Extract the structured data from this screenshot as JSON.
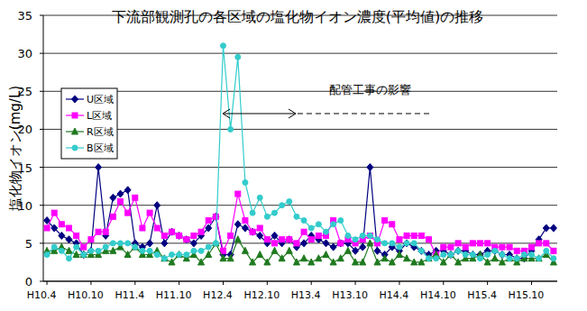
{
  "chart_data": {
    "type": "line",
    "title": "下流部観測孔の各区域の塩化物イオン濃度(平均値)の推移",
    "y_label": "塩化物イオン(mg/L)",
    "annotation": "配管工事の影響",
    "categories": [
      "H10.4",
      null,
      null,
      null,
      null,
      null,
      "H10.10",
      null,
      null,
      null,
      null,
      null,
      "H11.4",
      null,
      null,
      null,
      null,
      null,
      "H11.10",
      null,
      null,
      null,
      null,
      null,
      "H12.4",
      null,
      null,
      null,
      null,
      null,
      "H12.10",
      null,
      null,
      null,
      null,
      null,
      "H13.4",
      null,
      null,
      null,
      null,
      null,
      "H13.10",
      null,
      null,
      null,
      null,
      null,
      "H14.4",
      null,
      null,
      null,
      null,
      null,
      "H14.10",
      null,
      null,
      null,
      null,
      null,
      "H15.4",
      null,
      null,
      null,
      null,
      null,
      "H15.10",
      null,
      null,
      null
    ],
    "series": [
      {
        "name": "U区域",
        "color": "#000080",
        "marker": "diamond",
        "values": [
          8,
          7,
          6,
          5.5,
          5,
          3.5,
          4,
          15,
          6,
          11,
          11.5,
          12,
          5,
          4.5,
          5,
          10,
          5,
          6.5,
          6,
          5.5,
          5,
          6,
          7,
          8.5,
          3.5,
          3.5,
          7.5,
          7,
          6.5,
          6,
          5,
          6,
          5,
          5.5,
          4.5,
          5,
          6,
          5.5,
          5,
          4.5,
          5,
          5,
          4,
          4.5,
          15,
          4,
          3.5,
          4.5,
          4,
          5,
          4.5,
          4,
          3.5,
          4,
          4,
          3.5,
          4,
          4,
          3.5,
          3.5,
          4,
          4,
          3.5,
          3.5,
          3,
          3,
          4,
          5.5,
          7,
          7
        ]
      },
      {
        "name": "L区域",
        "color": "#ff00ff",
        "marker": "square",
        "values": [
          7,
          9,
          7.5,
          7,
          6,
          4.5,
          5.5,
          6.5,
          6.5,
          8.5,
          10.5,
          9,
          11,
          7,
          9,
          7,
          6,
          6.5,
          6,
          5.5,
          6,
          6.5,
          8,
          8.5,
          4,
          6,
          11.5,
          8,
          6.5,
          7,
          5.5,
          5,
          5.5,
          5.5,
          5,
          6.5,
          5.5,
          6,
          6,
          8,
          5,
          5.5,
          5,
          5.5,
          6,
          5,
          8,
          7.5,
          5.5,
          6,
          6,
          6,
          5.5,
          3.5,
          4.5,
          4.5,
          5,
          4.5,
          5,
          5,
          5,
          4.5,
          4.5,
          4.5,
          4,
          4,
          4.5,
          5,
          5,
          4
        ]
      },
      {
        "name": "R区域",
        "color": "#1f7a1f",
        "marker": "triangle",
        "values": [
          4,
          4,
          4.5,
          4,
          3.5,
          3.5,
          3.5,
          3.5,
          4,
          4,
          4.5,
          3.5,
          4.5,
          3.5,
          3.5,
          4,
          3,
          2.5,
          3.5,
          3,
          3.5,
          2.5,
          3.5,
          5,
          3,
          3,
          5.5,
          4,
          2.5,
          3.5,
          2.5,
          4,
          3,
          4,
          2.5,
          3,
          2.5,
          3,
          3.5,
          2.5,
          3,
          4,
          2.5,
          2.5,
          5,
          2.5,
          3,
          2.5,
          3.5,
          3,
          2.5,
          2.5,
          3,
          3.5,
          2.5,
          3.5,
          2.5,
          3,
          3,
          3.5,
          2.5,
          3,
          2.5,
          3,
          2.5,
          3,
          3,
          3,
          3.5,
          2.5
        ]
      },
      {
        "name": "B区域",
        "color": "#33cccc",
        "marker": "circle",
        "values": [
          3.5,
          4.5,
          4,
          3,
          4.5,
          3.5,
          4,
          4,
          4.5,
          5,
          5,
          5,
          4.5,
          4,
          4,
          3.5,
          3,
          3.5,
          3.5,
          3.5,
          4,
          4,
          4.5,
          5,
          31,
          20,
          29.5,
          13,
          9,
          11,
          8.5,
          9,
          10,
          10.5,
          8.5,
          8,
          7,
          7.5,
          6.5,
          7.5,
          8,
          6,
          5.5,
          6,
          6,
          5.5,
          5,
          5,
          4.5,
          5,
          5,
          4,
          3,
          3,
          3.5,
          3.5,
          4,
          3.5,
          3.5,
          3,
          3.5,
          4,
          3.5,
          3,
          3,
          3.5,
          3.5,
          3,
          4,
          3
        ]
      }
    ],
    "ylim": [
      0,
      35
    ],
    "yticks": [
      0,
      5,
      10,
      15,
      20,
      25,
      30,
      35
    ],
    "grid": true,
    "legend": "top-left"
  }
}
